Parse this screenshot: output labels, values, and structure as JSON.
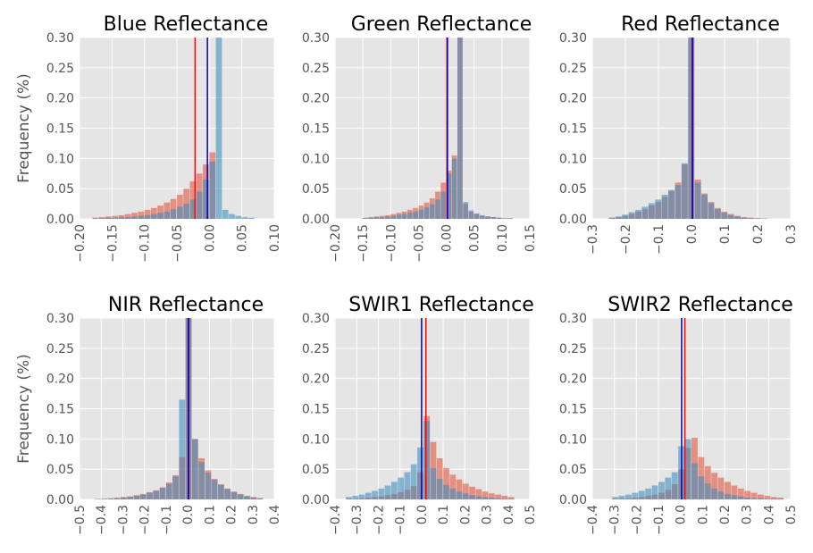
{
  "colors": {
    "panel_bg": "#E5E5E5",
    "grid": "#FFFFFF",
    "hist_a": "#E24A33",
    "hist_b": "#348ABD",
    "line_a": "#FF0000",
    "line_b": "#0000CC"
  },
  "ylabel": "Frequency (%)",
  "chart_data": [
    {
      "type": "bar",
      "title": "Blue Reflectance",
      "ylabel": "Frequency (%)",
      "xlim": [
        -0.2,
        0.1
      ],
      "ylim": [
        0,
        0.3
      ],
      "xticks": [
        -0.2,
        -0.15,
        -0.1,
        -0.05,
        0.0,
        0.05,
        0.1
      ],
      "xtick_labels": [
        "−0.20",
        "−0.15",
        "−0.10",
        "−0.05",
        "0.00",
        "0.05",
        "0.10"
      ],
      "yticks": [
        0,
        0.05,
        0.1,
        0.15,
        0.2,
        0.25,
        0.3
      ],
      "ytick_labels": [
        "0.00",
        "0.05",
        "0.10",
        "0.15",
        "0.20",
        "0.25",
        "0.30"
      ],
      "bin_edges": [
        -0.18,
        -0.17,
        -0.16,
        -0.15,
        -0.14,
        -0.13,
        -0.12,
        -0.11,
        -0.1,
        -0.09,
        -0.08,
        -0.07,
        -0.06,
        -0.05,
        -0.04,
        -0.03,
        -0.02,
        -0.01,
        0.0,
        0.01,
        0.02,
        0.03,
        0.04,
        0.05,
        0.06,
        0.07
      ],
      "series": [
        {
          "color": "#E24A33",
          "values": [
            0.002,
            0.003,
            0.004,
            0.005,
            0.006,
            0.008,
            0.01,
            0.012,
            0.015,
            0.018,
            0.022,
            0.027,
            0.033,
            0.04,
            0.05,
            0.062,
            0.075,
            0.09,
            0.11,
            0,
            0,
            0,
            0,
            0,
            0
          ]
        },
        {
          "color": "#348ABD",
          "values": [
            0.001,
            0.001,
            0.002,
            0.002,
            0.003,
            0.003,
            0.004,
            0.005,
            0.006,
            0.008,
            0.01,
            0.012,
            0.016,
            0.02,
            0.025,
            0.032,
            0.045,
            0.065,
            0.095,
            0.3,
            0.015,
            0.008,
            0.005,
            0.003,
            0.002
          ]
        }
      ],
      "vlines": [
        {
          "x": -0.022,
          "color": "#FF0000"
        },
        {
          "x": -0.003,
          "color": "#0000CC"
        }
      ]
    },
    {
      "type": "bar",
      "title": "Green Reflectance",
      "xlim": [
        -0.2,
        0.15
      ],
      "ylim": [
        0,
        0.3
      ],
      "xticks": [
        -0.2,
        -0.15,
        -0.1,
        -0.05,
        0.0,
        0.05,
        0.1,
        0.15
      ],
      "xtick_labels": [
        "−0.20",
        "−0.15",
        "−0.10",
        "−0.05",
        "0.00",
        "0.05",
        "0.10",
        "0.15"
      ],
      "yticks": [
        0,
        0.05,
        0.1,
        0.15,
        0.2,
        0.25,
        0.3
      ],
      "ytick_labels": [
        "0.00",
        "0.05",
        "0.10",
        "0.15",
        "0.20",
        "0.25",
        "0.30"
      ],
      "bin_edges": [
        -0.15,
        -0.14,
        -0.13,
        -0.12,
        -0.11,
        -0.1,
        -0.09,
        -0.08,
        -0.07,
        -0.06,
        -0.05,
        -0.04,
        -0.03,
        -0.02,
        -0.01,
        0.0,
        0.01,
        0.02,
        0.03,
        0.04,
        0.05,
        0.06,
        0.07,
        0.08,
        0.09,
        0.1,
        0.11,
        0.12
      ],
      "series": [
        {
          "color": "#E24A33",
          "values": [
            0.002,
            0.003,
            0.004,
            0.005,
            0.006,
            0.008,
            0.01,
            0.012,
            0.015,
            0.018,
            0.022,
            0.027,
            0.034,
            0.045,
            0.06,
            0.08,
            0.105,
            0.3,
            0.025,
            0.012,
            0.008,
            0.005,
            0.004,
            0.003,
            0.002,
            0.001,
            0.001
          ]
        },
        {
          "color": "#348ABD",
          "values": [
            0.001,
            0.002,
            0.003,
            0.003,
            0.004,
            0.005,
            0.007,
            0.008,
            0.01,
            0.012,
            0.015,
            0.019,
            0.024,
            0.032,
            0.045,
            0.075,
            0.1,
            0.3,
            0.028,
            0.014,
            0.009,
            0.006,
            0.004,
            0.003,
            0.002,
            0.001,
            0.001
          ]
        }
      ],
      "vlines": [
        {
          "x": 0.001,
          "color": "#FF0000"
        },
        {
          "x": 0.002,
          "color": "#0000CC"
        }
      ]
    },
    {
      "type": "bar",
      "title": "Red Reflectance",
      "xlim": [
        -0.3,
        0.3
      ],
      "ylim": [
        0,
        0.3
      ],
      "xticks": [
        -0.3,
        -0.2,
        -0.1,
        0.0,
        0.1,
        0.2,
        0.3
      ],
      "xtick_labels": [
        "−0.3",
        "−0.2",
        "−0.1",
        "0.0",
        "0.1",
        "0.2",
        "0.3"
      ],
      "yticks": [
        0,
        0.05,
        0.1,
        0.15,
        0.2,
        0.25,
        0.3
      ],
      "ytick_labels": [
        "0.00",
        "0.05",
        "0.10",
        "0.15",
        "0.20",
        "0.25",
        "0.30"
      ],
      "bin_edges": [
        -0.25,
        -0.23,
        -0.21,
        -0.19,
        -0.17,
        -0.15,
        -0.13,
        -0.11,
        -0.09,
        -0.07,
        -0.05,
        -0.03,
        -0.01,
        0.01,
        0.03,
        0.05,
        0.07,
        0.09,
        0.11,
        0.13,
        0.15,
        0.17,
        0.19,
        0.21,
        0.23
      ],
      "series": [
        {
          "color": "#E24A33",
          "values": [
            0.002,
            0.003,
            0.005,
            0.008,
            0.012,
            0.016,
            0.022,
            0.028,
            0.036,
            0.046,
            0.06,
            0.09,
            0.3,
            0.065,
            0.042,
            0.028,
            0.018,
            0.012,
            0.008,
            0.005,
            0.003,
            0.002,
            0.001,
            0.001
          ]
        },
        {
          "color": "#348ABD",
          "values": [
            0.002,
            0.004,
            0.007,
            0.011,
            0.015,
            0.02,
            0.026,
            0.032,
            0.04,
            0.048,
            0.056,
            0.092,
            0.3,
            0.06,
            0.04,
            0.026,
            0.016,
            0.01,
            0.006,
            0.004,
            0.002,
            0.001,
            0.001,
            0.0
          ]
        }
      ],
      "vlines": [
        {
          "x": 0.002,
          "color": "#FF0000"
        },
        {
          "x": 0.003,
          "color": "#0000CC"
        }
      ]
    },
    {
      "type": "bar",
      "title": "NIR Reflectance",
      "xlim": [
        -0.5,
        0.4
      ],
      "ylim": [
        0,
        0.3
      ],
      "xticks": [
        -0.5,
        -0.4,
        -0.3,
        -0.2,
        -0.1,
        0.0,
        0.1,
        0.2,
        0.3,
        0.4
      ],
      "xtick_labels": [
        "−0.5",
        "−0.4",
        "−0.3",
        "−0.2",
        "−0.1",
        "0.0",
        "0.1",
        "0.2",
        "0.3",
        "0.4"
      ],
      "yticks": [
        0,
        0.05,
        0.1,
        0.15,
        0.2,
        0.25,
        0.3
      ],
      "ytick_labels": [
        "0.00",
        "0.05",
        "0.10",
        "0.15",
        "0.20",
        "0.25",
        "0.30"
      ],
      "bin_edges": [
        -0.43,
        -0.4,
        -0.37,
        -0.34,
        -0.31,
        -0.28,
        -0.25,
        -0.22,
        -0.19,
        -0.16,
        -0.13,
        -0.1,
        -0.07,
        -0.04,
        -0.01,
        0.02,
        0.05,
        0.08,
        0.11,
        0.14,
        0.17,
        0.2,
        0.23,
        0.26,
        0.29,
        0.32,
        0.35
      ],
      "series": [
        {
          "color": "#E24A33",
          "values": [
            0.001,
            0.001,
            0.002,
            0.003,
            0.004,
            0.005,
            0.007,
            0.009,
            0.012,
            0.015,
            0.02,
            0.028,
            0.04,
            0.07,
            0.3,
            0.1,
            0.068,
            0.048,
            0.034,
            0.025,
            0.018,
            0.013,
            0.009,
            0.006,
            0.004,
            0.002
          ]
        },
        {
          "color": "#348ABD",
          "values": [
            0.0,
            0.001,
            0.001,
            0.002,
            0.003,
            0.004,
            0.006,
            0.008,
            0.011,
            0.014,
            0.019,
            0.026,
            0.038,
            0.165,
            0.3,
            0.1,
            0.062,
            0.044,
            0.032,
            0.024,
            0.017,
            0.012,
            0.008,
            0.005,
            0.003,
            0.002
          ]
        }
      ],
      "vlines": [
        {
          "x": 0.005,
          "color": "#FF0000"
        },
        {
          "x": 0.003,
          "color": "#0000CC"
        }
      ]
    },
    {
      "type": "bar",
      "title": "SWIR1 Reflectance",
      "xlim": [
        -0.4,
        0.5
      ],
      "ylim": [
        0,
        0.3
      ],
      "xticks": [
        -0.4,
        -0.3,
        -0.2,
        -0.1,
        0.0,
        0.1,
        0.2,
        0.3,
        0.4,
        0.5
      ],
      "xtick_labels": [
        "−0.4",
        "−0.3",
        "−0.2",
        "−0.1",
        "0.0",
        "0.1",
        "0.2",
        "0.3",
        "0.4",
        "0.5"
      ],
      "yticks": [
        0,
        0.05,
        0.1,
        0.15,
        0.2,
        0.25,
        0.3
      ],
      "ytick_labels": [
        "0.00",
        "0.05",
        "0.10",
        "0.15",
        "0.20",
        "0.25",
        "0.30"
      ],
      "bin_edges": [
        -0.35,
        -0.32,
        -0.29,
        -0.26,
        -0.23,
        -0.2,
        -0.17,
        -0.14,
        -0.11,
        -0.08,
        -0.05,
        -0.02,
        0.01,
        0.04,
        0.07,
        0.1,
        0.13,
        0.16,
        0.19,
        0.22,
        0.25,
        0.28,
        0.31,
        0.34,
        0.37,
        0.4,
        0.43
      ],
      "series": [
        {
          "color": "#E24A33",
          "values": [
            0.001,
            0.001,
            0.002,
            0.003,
            0.004,
            0.005,
            0.007,
            0.009,
            0.012,
            0.016,
            0.022,
            0.045,
            0.138,
            0.095,
            0.068,
            0.052,
            0.041,
            0.033,
            0.026,
            0.021,
            0.017,
            0.013,
            0.01,
            0.008,
            0.006,
            0.004
          ]
        },
        {
          "color": "#348ABD",
          "values": [
            0.004,
            0.006,
            0.008,
            0.011,
            0.014,
            0.018,
            0.023,
            0.029,
            0.036,
            0.045,
            0.058,
            0.086,
            0.13,
            0.052,
            0.034,
            0.024,
            0.018,
            0.013,
            0.01,
            0.007,
            0.005,
            0.004,
            0.003,
            0.002,
            0.001,
            0.001
          ]
        }
      ],
      "vlines": [
        {
          "x": 0.02,
          "color": "#FF0000"
        },
        {
          "x": 0.0,
          "color": "#0000CC"
        }
      ]
    },
    {
      "type": "bar",
      "title": "SWIR2 Reflectance",
      "xlim": [
        -0.4,
        0.5
      ],
      "ylim": [
        0,
        0.3
      ],
      "xticks": [
        -0.4,
        -0.3,
        -0.2,
        -0.1,
        0.0,
        0.1,
        0.2,
        0.3,
        0.4,
        0.5
      ],
      "xtick_labels": [
        "−0.4",
        "−0.3",
        "−0.2",
        "−0.1",
        "0.0",
        "0.1",
        "0.2",
        "0.3",
        "0.4",
        "0.5"
      ],
      "yticks": [
        0,
        0.05,
        0.1,
        0.15,
        0.2,
        0.25,
        0.3
      ],
      "ytick_labels": [
        "0.00",
        "0.05",
        "0.10",
        "0.15",
        "0.20",
        "0.25",
        "0.30"
      ],
      "bin_edges": [
        -0.31,
        -0.28,
        -0.25,
        -0.22,
        -0.19,
        -0.16,
        -0.13,
        -0.1,
        -0.07,
        -0.04,
        -0.01,
        0.02,
        0.05,
        0.08,
        0.11,
        0.14,
        0.17,
        0.2,
        0.23,
        0.26,
        0.29,
        0.32,
        0.35,
        0.38,
        0.41,
        0.44,
        0.47
      ],
      "series": [
        {
          "color": "#E24A33",
          "values": [
            0.001,
            0.002,
            0.002,
            0.003,
            0.004,
            0.006,
            0.008,
            0.011,
            0.016,
            0.025,
            0.05,
            0.085,
            0.102,
            0.07,
            0.055,
            0.044,
            0.036,
            0.029,
            0.023,
            0.018,
            0.014,
            0.011,
            0.008,
            0.006,
            0.004,
            0.003
          ]
        },
        {
          "color": "#348ABD",
          "values": [
            0.004,
            0.006,
            0.008,
            0.011,
            0.014,
            0.018,
            0.023,
            0.029,
            0.036,
            0.045,
            0.088,
            0.1,
            0.06,
            0.038,
            0.026,
            0.018,
            0.013,
            0.009,
            0.007,
            0.005,
            0.003,
            0.002,
            0.002,
            0.001,
            0.001,
            0.001
          ]
        }
      ],
      "vlines": [
        {
          "x": 0.02,
          "color": "#FF0000"
        },
        {
          "x": 0.005,
          "color": "#0000CC"
        }
      ]
    }
  ]
}
